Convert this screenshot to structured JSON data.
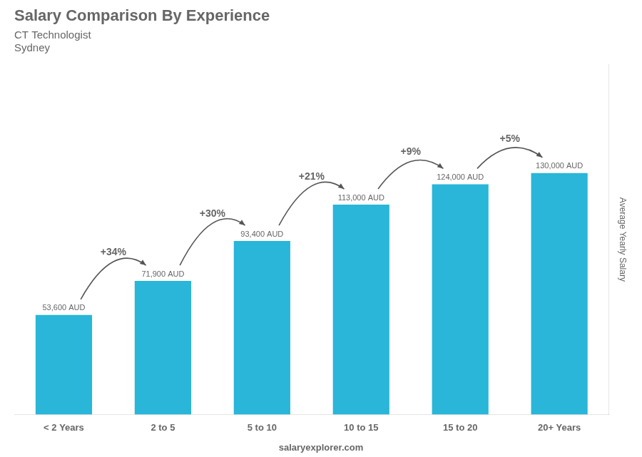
{
  "chart_data": {
    "type": "bar",
    "title": "Salary Comparison By Experience",
    "subtitle": [
      "CT Technologist",
      "Sydney"
    ],
    "ylabel": "Average Yearly Salary",
    "footer": "salaryexplorer.com",
    "categories": [
      "< 2 Years",
      "2 to 5",
      "5 to 10",
      "10 to 15",
      "15 to 20",
      "20+ Years"
    ],
    "values": [
      53600,
      71900,
      93400,
      113000,
      124000,
      130000
    ],
    "value_labels": [
      "53,600 AUD",
      "71,900 AUD",
      "93,400 AUD",
      "113,000 AUD",
      "124,000 AUD",
      "130,000 AUD"
    ],
    "data_labels": true,
    "color": "#29b6d8",
    "ylim": [
      0,
      188500
    ],
    "grid": false,
    "tick_labels": "x",
    "annotations": [
      {
        "text": "+34%",
        "from": "< 2 Years",
        "to": "2 to 5"
      },
      {
        "text": "+30%",
        "from": "2 to 5",
        "to": "5 to 10"
      },
      {
        "text": "+21%",
        "from": "5 to 10",
        "to": "10 to 15"
      },
      {
        "text": "+9%",
        "from": "10 to 15",
        "to": "15 to 20"
      },
      {
        "text": "+5%",
        "from": "15 to 20",
        "to": "20+ Years"
      }
    ]
  }
}
